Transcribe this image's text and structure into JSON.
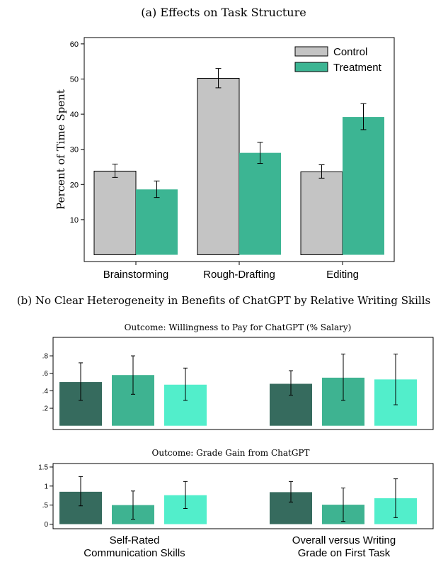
{
  "panel_a_title": "(a) Effects on Task Structure",
  "panel_b_title": "(b) No Clear Heterogeneity in Benefits of ChatGPT by Relative Writing Skills",
  "chart_data": [
    {
      "type": "bar",
      "title": "",
      "ylabel": "Percent of Time Spent",
      "xlabel": "",
      "categories": [
        "Brainstorming",
        "Rough-Drafting",
        "Editing"
      ],
      "ylim": [
        0,
        60
      ],
      "yticks": [
        10,
        20,
        30,
        40,
        50,
        60
      ],
      "legend_position": "top-right",
      "grid": false,
      "series": [
        {
          "name": "Control",
          "color": "#c4c4c4",
          "values": [
            23.8,
            50.2,
            23.6
          ],
          "err_low": [
            22.0,
            47.5,
            21.8
          ],
          "err_high": [
            25.8,
            53.0,
            25.6
          ]
        },
        {
          "name": "Treatment",
          "color": "#3cb593",
          "values": [
            18.6,
            29.0,
            39.2
          ],
          "err_low": [
            16.3,
            26.0,
            35.6
          ],
          "err_high": [
            21.0,
            32.0,
            43.0
          ]
        }
      ]
    },
    {
      "type": "bar",
      "title": "Outcome: Willingness to Pay for ChatGPT (% Salary)",
      "ylabel": "",
      "xlabel": "",
      "groups": [
        "Self-Rated Communication Skills",
        "Overall versus Writing Grade on First Task"
      ],
      "ylim": [
        0,
        0.85
      ],
      "yticks": [
        0.2,
        0.4,
        0.6,
        0.8
      ],
      "ytick_labels": [
        ".2",
        ".4",
        ".6",
        ".8"
      ],
      "grid": false,
      "bar_colors": [
        "#366b5e",
        "#3eb391",
        "#52eecb"
      ],
      "values": [
        [
          0.5,
          0.58,
          0.47
        ],
        [
          0.48,
          0.55,
          0.53
        ]
      ],
      "err_low": [
        [
          0.29,
          0.36,
          0.29
        ],
        [
          0.35,
          0.29,
          0.24
        ]
      ],
      "err_high": [
        [
          0.72,
          0.8,
          0.66
        ],
        [
          0.63,
          0.82,
          0.82
        ]
      ]
    },
    {
      "type": "bar",
      "title": "Outcome: Grade Gain from ChatGPT",
      "ylabel": "",
      "xlabel": "",
      "groups": [
        "Self-Rated Communication Skills",
        "Overall versus Writing Grade on First Task"
      ],
      "ylim": [
        -0.05,
        1.55
      ],
      "yticks": [
        0,
        0.5,
        1,
        1.5
      ],
      "ytick_labels": [
        "0",
        ".5",
        "1",
        "1.5"
      ],
      "grid": false,
      "bar_colors": [
        "#366b5e",
        "#3eb391",
        "#52eecb"
      ],
      "values": [
        [
          0.85,
          0.5,
          0.76
        ],
        [
          0.84,
          0.51,
          0.68
        ]
      ],
      "err_low": [
        [
          0.48,
          0.13,
          0.41
        ],
        [
          0.58,
          0.07,
          0.17
        ]
      ],
      "err_high": [
        [
          1.25,
          0.87,
          1.12
        ],
        [
          1.12,
          0.95,
          1.19
        ]
      ]
    }
  ],
  "group_labels": [
    {
      "line1": "Self-Rated",
      "line2": "Communication Skills"
    },
    {
      "line1": "Overall versus Writing",
      "line2": "Grade on First Task"
    }
  ]
}
